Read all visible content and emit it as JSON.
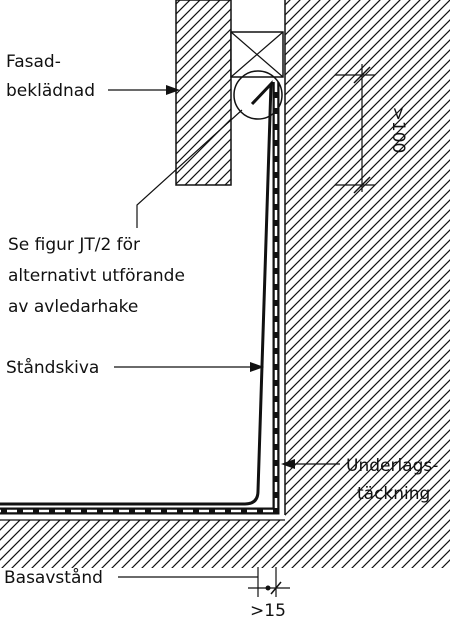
{
  "labels": {
    "fasad_line1": "Fasad-",
    "fasad_line2": "beklädnad",
    "se_figur_line1": "Se figur JT/2 för",
    "se_figur_line2": "alternativt utförande",
    "se_figur_line3": "av avledarhake",
    "standskiva": "Ståndskiva",
    "underlag_line1": "Underlags-",
    "underlag_line2": "täckning",
    "basavstand": "Basavstånd",
    "dim_100": ">100",
    "dim_15": ">15"
  },
  "colors": {
    "ink": "#111111",
    "background": "#ffffff"
  }
}
